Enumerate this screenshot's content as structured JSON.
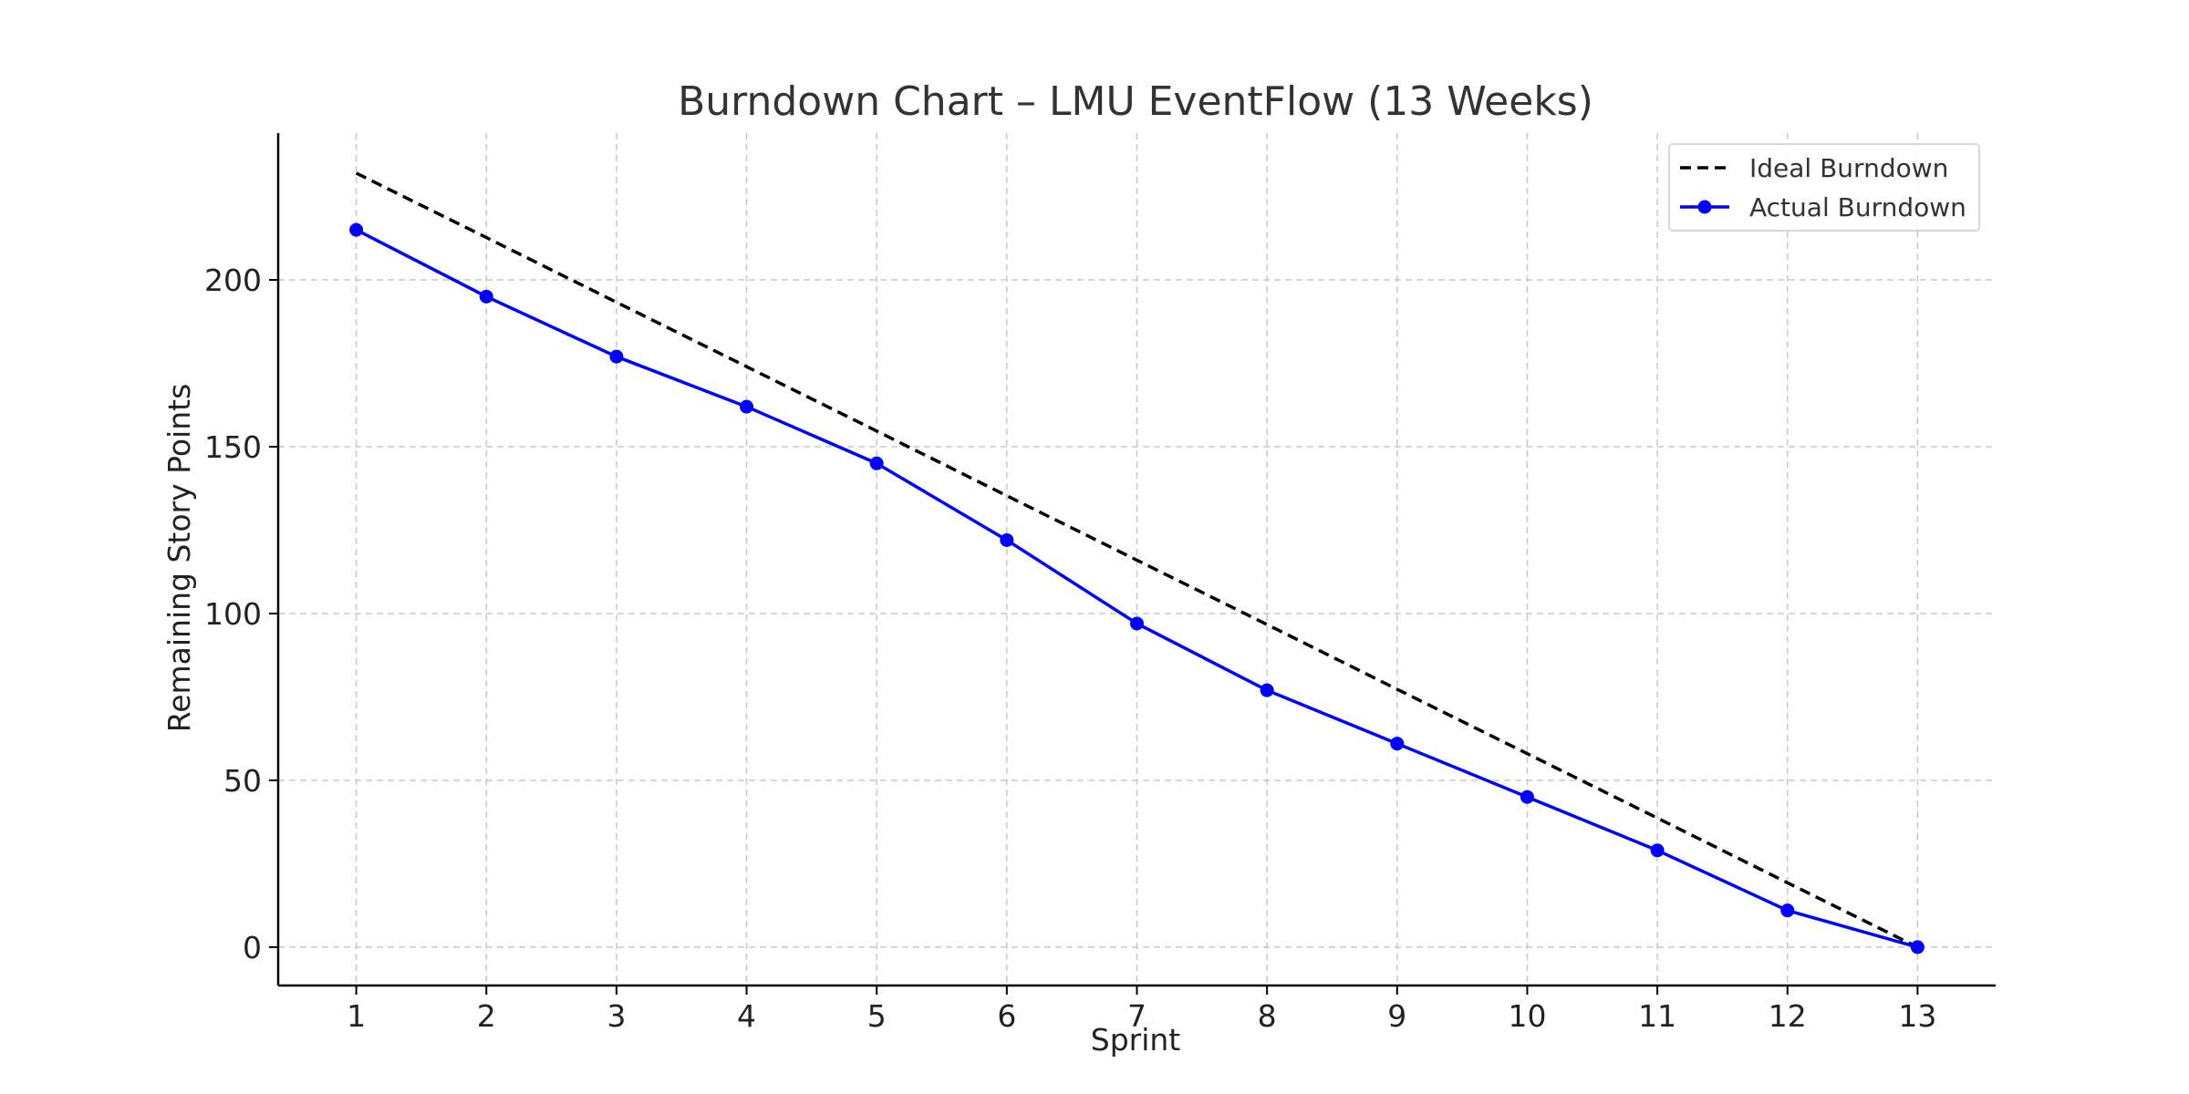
{
  "chart_data": {
    "type": "line",
    "title": "Burndown Chart – LMU EventFlow (13 Weeks)",
    "xlabel": "Sprint",
    "ylabel": "Remaining Story Points",
    "x": [
      1,
      2,
      3,
      4,
      5,
      6,
      7,
      8,
      9,
      10,
      11,
      12,
      13
    ],
    "xlim": [
      0.4,
      13.6
    ],
    "ylim": [
      -11.5,
      244
    ],
    "yticks": [
      0,
      50,
      100,
      150,
      200
    ],
    "grid": true,
    "legend_position": "top-right",
    "series": [
      {
        "name": "Ideal Burndown",
        "style": "dashed",
        "color": "#000000",
        "markers": false,
        "values": [
          232,
          212.7,
          193.3,
          174,
          154.7,
          135.3,
          116,
          96.7,
          77.3,
          58,
          38.7,
          19.3,
          0
        ]
      },
      {
        "name": "Actual Burndown",
        "style": "solid",
        "color": "#0000ff",
        "markers": true,
        "values": [
          215,
          195,
          177,
          162,
          145,
          122,
          97,
          77,
          61,
          45,
          29,
          11,
          0
        ]
      }
    ]
  }
}
